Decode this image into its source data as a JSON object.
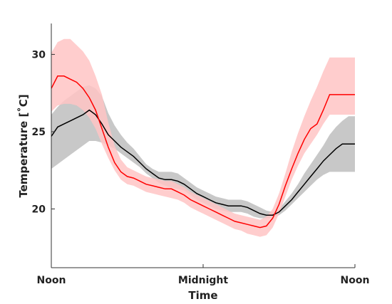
{
  "chart_data": {
    "type": "line",
    "xlabel": "Time",
    "ylabel": "Temperature [˚C]",
    "x_tick_labels": [
      "Noon",
      "Midnight",
      "Noon"
    ],
    "y_ticks": [
      20,
      25,
      30
    ],
    "xlim": [
      0,
      24
    ],
    "ylim": [
      16.2,
      32.0
    ],
    "grid": false,
    "legend": "none",
    "x_unit": "hours since noon",
    "series": [
      {
        "color": "#000000",
        "band_color": "#c8c8c8",
        "x": [
          0,
          0.5,
          1,
          1.5,
          2,
          2.5,
          3,
          3.5,
          4,
          4.5,
          5,
          5.5,
          6,
          6.5,
          7,
          7.5,
          8,
          8.5,
          9,
          9.5,
          10,
          10.5,
          11,
          11.5,
          12,
          12.5,
          13,
          13.5,
          14,
          14.5,
          15,
          15.5,
          16,
          16.5,
          17,
          17.5,
          18,
          18.5,
          19,
          19.5,
          20,
          20.5,
          21,
          21.5,
          22,
          22.5,
          23,
          23.5,
          24
        ],
        "values": [
          24.7,
          25.3,
          25.5,
          25.7,
          25.9,
          26.1,
          26.4,
          26.1,
          25.5,
          24.8,
          24.4,
          24.0,
          23.7,
          23.4,
          23.0,
          22.6,
          22.3,
          22.0,
          21.9,
          21.9,
          21.8,
          21.6,
          21.3,
          21.0,
          20.8,
          20.6,
          20.4,
          20.3,
          20.2,
          20.2,
          20.2,
          20.1,
          19.9,
          19.7,
          19.6,
          19.6,
          19.8,
          20.2,
          20.6,
          21.1,
          21.6,
          22.1,
          22.6,
          23.1,
          23.5,
          23.9,
          24.2,
          24.2,
          24.2
        ],
        "lower": [
          22.6,
          22.9,
          23.2,
          23.5,
          23.8,
          24.1,
          24.4,
          24.4,
          24.3,
          24.1,
          23.9,
          23.6,
          23.3,
          23.0,
          22.7,
          22.3,
          22.0,
          21.7,
          21.5,
          21.4,
          21.3,
          21.2,
          20.9,
          20.6,
          20.4,
          20.2,
          20.0,
          19.9,
          19.8,
          19.8,
          19.8,
          19.7,
          19.5,
          19.4,
          19.4,
          19.4,
          19.6,
          19.9,
          20.3,
          20.7,
          21.1,
          21.5,
          21.9,
          22.2,
          22.4,
          22.4,
          22.4,
          22.4,
          22.4
        ],
        "upper": [
          26.1,
          26.6,
          27.0,
          27.3,
          27.6,
          27.9,
          28.0,
          27.8,
          27.3,
          26.2,
          25.4,
          24.8,
          24.3,
          23.9,
          23.4,
          22.9,
          22.6,
          22.4,
          22.4,
          22.4,
          22.3,
          22.0,
          21.7,
          21.4,
          21.2,
          21.0,
          20.8,
          20.7,
          20.6,
          20.6,
          20.6,
          20.5,
          20.3,
          20.1,
          19.9,
          19.8,
          20.0,
          20.5,
          21.0,
          21.6,
          22.3,
          22.9,
          23.5,
          24.1,
          24.8,
          25.3,
          25.7,
          26.0,
          26.0
        ]
      },
      {
        "color": "#ff0000",
        "band_color": "#ffc4c4",
        "x": [
          0,
          0.5,
          1,
          1.5,
          2,
          2.5,
          3,
          3.5,
          4,
          4.5,
          5,
          5.5,
          6,
          6.5,
          7,
          7.5,
          8,
          8.5,
          9,
          9.5,
          10,
          10.5,
          11,
          11.5,
          12,
          12.5,
          13,
          13.5,
          14,
          14.5,
          15,
          15.5,
          16,
          16.5,
          17,
          17.5,
          18,
          18.5,
          19,
          19.5,
          20,
          20.5,
          21,
          21.5,
          22,
          22.5,
          23,
          23.5,
          24
        ],
        "values": [
          27.8,
          28.6,
          28.6,
          28.4,
          28.2,
          27.8,
          27.2,
          26.4,
          25.2,
          24.0,
          23.0,
          22.4,
          22.1,
          22.0,
          21.8,
          21.6,
          21.5,
          21.4,
          21.3,
          21.3,
          21.1,
          20.9,
          20.6,
          20.4,
          20.2,
          20.0,
          19.8,
          19.6,
          19.4,
          19.2,
          19.1,
          19.0,
          18.9,
          18.8,
          18.9,
          19.4,
          20.3,
          21.5,
          22.6,
          23.6,
          24.5,
          25.2,
          25.5,
          26.4,
          27.4,
          27.4,
          27.4,
          27.4,
          27.4
        ],
        "lower": [
          26.3,
          26.7,
          26.8,
          26.8,
          26.7,
          26.4,
          25.9,
          25.2,
          24.2,
          23.3,
          22.5,
          21.9,
          21.6,
          21.5,
          21.3,
          21.1,
          21.0,
          20.9,
          20.8,
          20.7,
          20.6,
          20.4,
          20.1,
          19.9,
          19.7,
          19.5,
          19.3,
          19.1,
          18.9,
          18.7,
          18.6,
          18.4,
          18.3,
          18.2,
          18.3,
          18.8,
          19.7,
          20.8,
          21.9,
          22.8,
          23.6,
          24.2,
          24.8,
          25.5,
          26.1,
          26.1,
          26.1,
          26.1,
          26.1
        ],
        "upper": [
          30.1,
          30.8,
          31.0,
          31.0,
          30.6,
          30.2,
          29.6,
          28.6,
          27.4,
          25.6,
          24.1,
          23.2,
          22.7,
          22.5,
          22.3,
          22.1,
          22.0,
          21.9,
          21.8,
          21.8,
          21.6,
          21.4,
          21.1,
          20.9,
          20.7,
          20.5,
          20.3,
          20.1,
          19.9,
          19.7,
          19.6,
          19.5,
          19.4,
          19.3,
          19.5,
          20.0,
          21.0,
          22.3,
          23.7,
          24.9,
          26.0,
          27.0,
          27.9,
          28.9,
          29.8,
          29.8,
          29.8,
          29.8,
          29.8
        ]
      }
    ]
  }
}
